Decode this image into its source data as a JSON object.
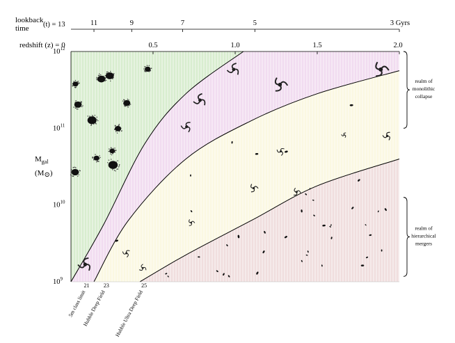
{
  "colors": {
    "green_region": "#d8edcf",
    "purple_region": "#f1dcf0",
    "yellow_region": "#fbf8e2",
    "pink_region": "#f0dede",
    "curve": "#000000",
    "galaxy": "#111111"
  },
  "top_axis": {
    "label_line1": "lookback",
    "label_line2": "time",
    "var_label": "(t) = 13",
    "ticks": [
      {
        "label": "11",
        "z": 0.14
      },
      {
        "label": "9",
        "z": 0.37
      },
      {
        "label": "7",
        "z": 0.68
      },
      {
        "label": "5",
        "z": 1.12
      },
      {
        "label": "3 Gyrs",
        "z": 2.0
      }
    ]
  },
  "redshift_axis": {
    "var_label": "redshift (z) = 0",
    "range": [
      0,
      2
    ],
    "ticks": [
      {
        "label": "0.5",
        "z": 0.5
      },
      {
        "label": "1.0",
        "z": 1.0
      },
      {
        "label": "1.5",
        "z": 1.5
      },
      {
        "label": "2.0",
        "z": 2.0
      }
    ]
  },
  "y_axis": {
    "label_main": "M",
    "label_sub": "gal",
    "unit_open": "(M",
    "unit_sun": "⊙",
    "unit_close": ")",
    "log_range": [
      9,
      12
    ],
    "ticks": [
      {
        "base": "10",
        "exp": "12",
        "log": 12
      },
      {
        "base": "10",
        "exp": "11",
        "log": 11
      },
      {
        "base": "10",
        "exp": "10",
        "log": 10
      },
      {
        "base": "10",
        "exp": "9",
        "log": 9
      }
    ]
  },
  "magnitude_limits": [
    {
      "mag": "21",
      "label": "5m class limit",
      "z": 0.07
    },
    {
      "mag": "23",
      "label": "Hubble Deep Field",
      "z": 0.19
    },
    {
      "mag": "25",
      "label": "Hubble Ultra Deep Field",
      "z": 0.42
    }
  ],
  "annotations": [
    {
      "lines": [
        "realm of",
        "monolithic",
        "collapse"
      ],
      "range": [
        11.0,
        12.0
      ]
    },
    {
      "lines": [
        "realm of",
        "hierarchical",
        "mergers"
      ],
      "range": [
        9.07,
        10.1
      ]
    }
  ],
  "region_boundaries": [
    {
      "name": "green-upper",
      "points": [
        [
          0.0,
          9.0
        ],
        [
          0.2,
          9.75
        ],
        [
          0.45,
          10.8
        ],
        [
          0.7,
          11.45
        ],
        [
          1.05,
          12.0
        ]
      ]
    },
    {
      "name": "purple-upper",
      "points": [
        [
          0.14,
          9.0
        ],
        [
          0.35,
          9.8
        ],
        [
          0.7,
          10.6
        ],
        [
          1.1,
          11.1
        ],
        [
          1.5,
          11.45
        ],
        [
          2.0,
          11.75
        ]
      ]
    },
    {
      "name": "yellow-upper",
      "points": [
        [
          0.42,
          9.0
        ],
        [
          0.7,
          9.35
        ],
        [
          1.1,
          9.8
        ],
        [
          1.5,
          10.25
        ],
        [
          2.0,
          10.6
        ]
      ]
    }
  ]
}
